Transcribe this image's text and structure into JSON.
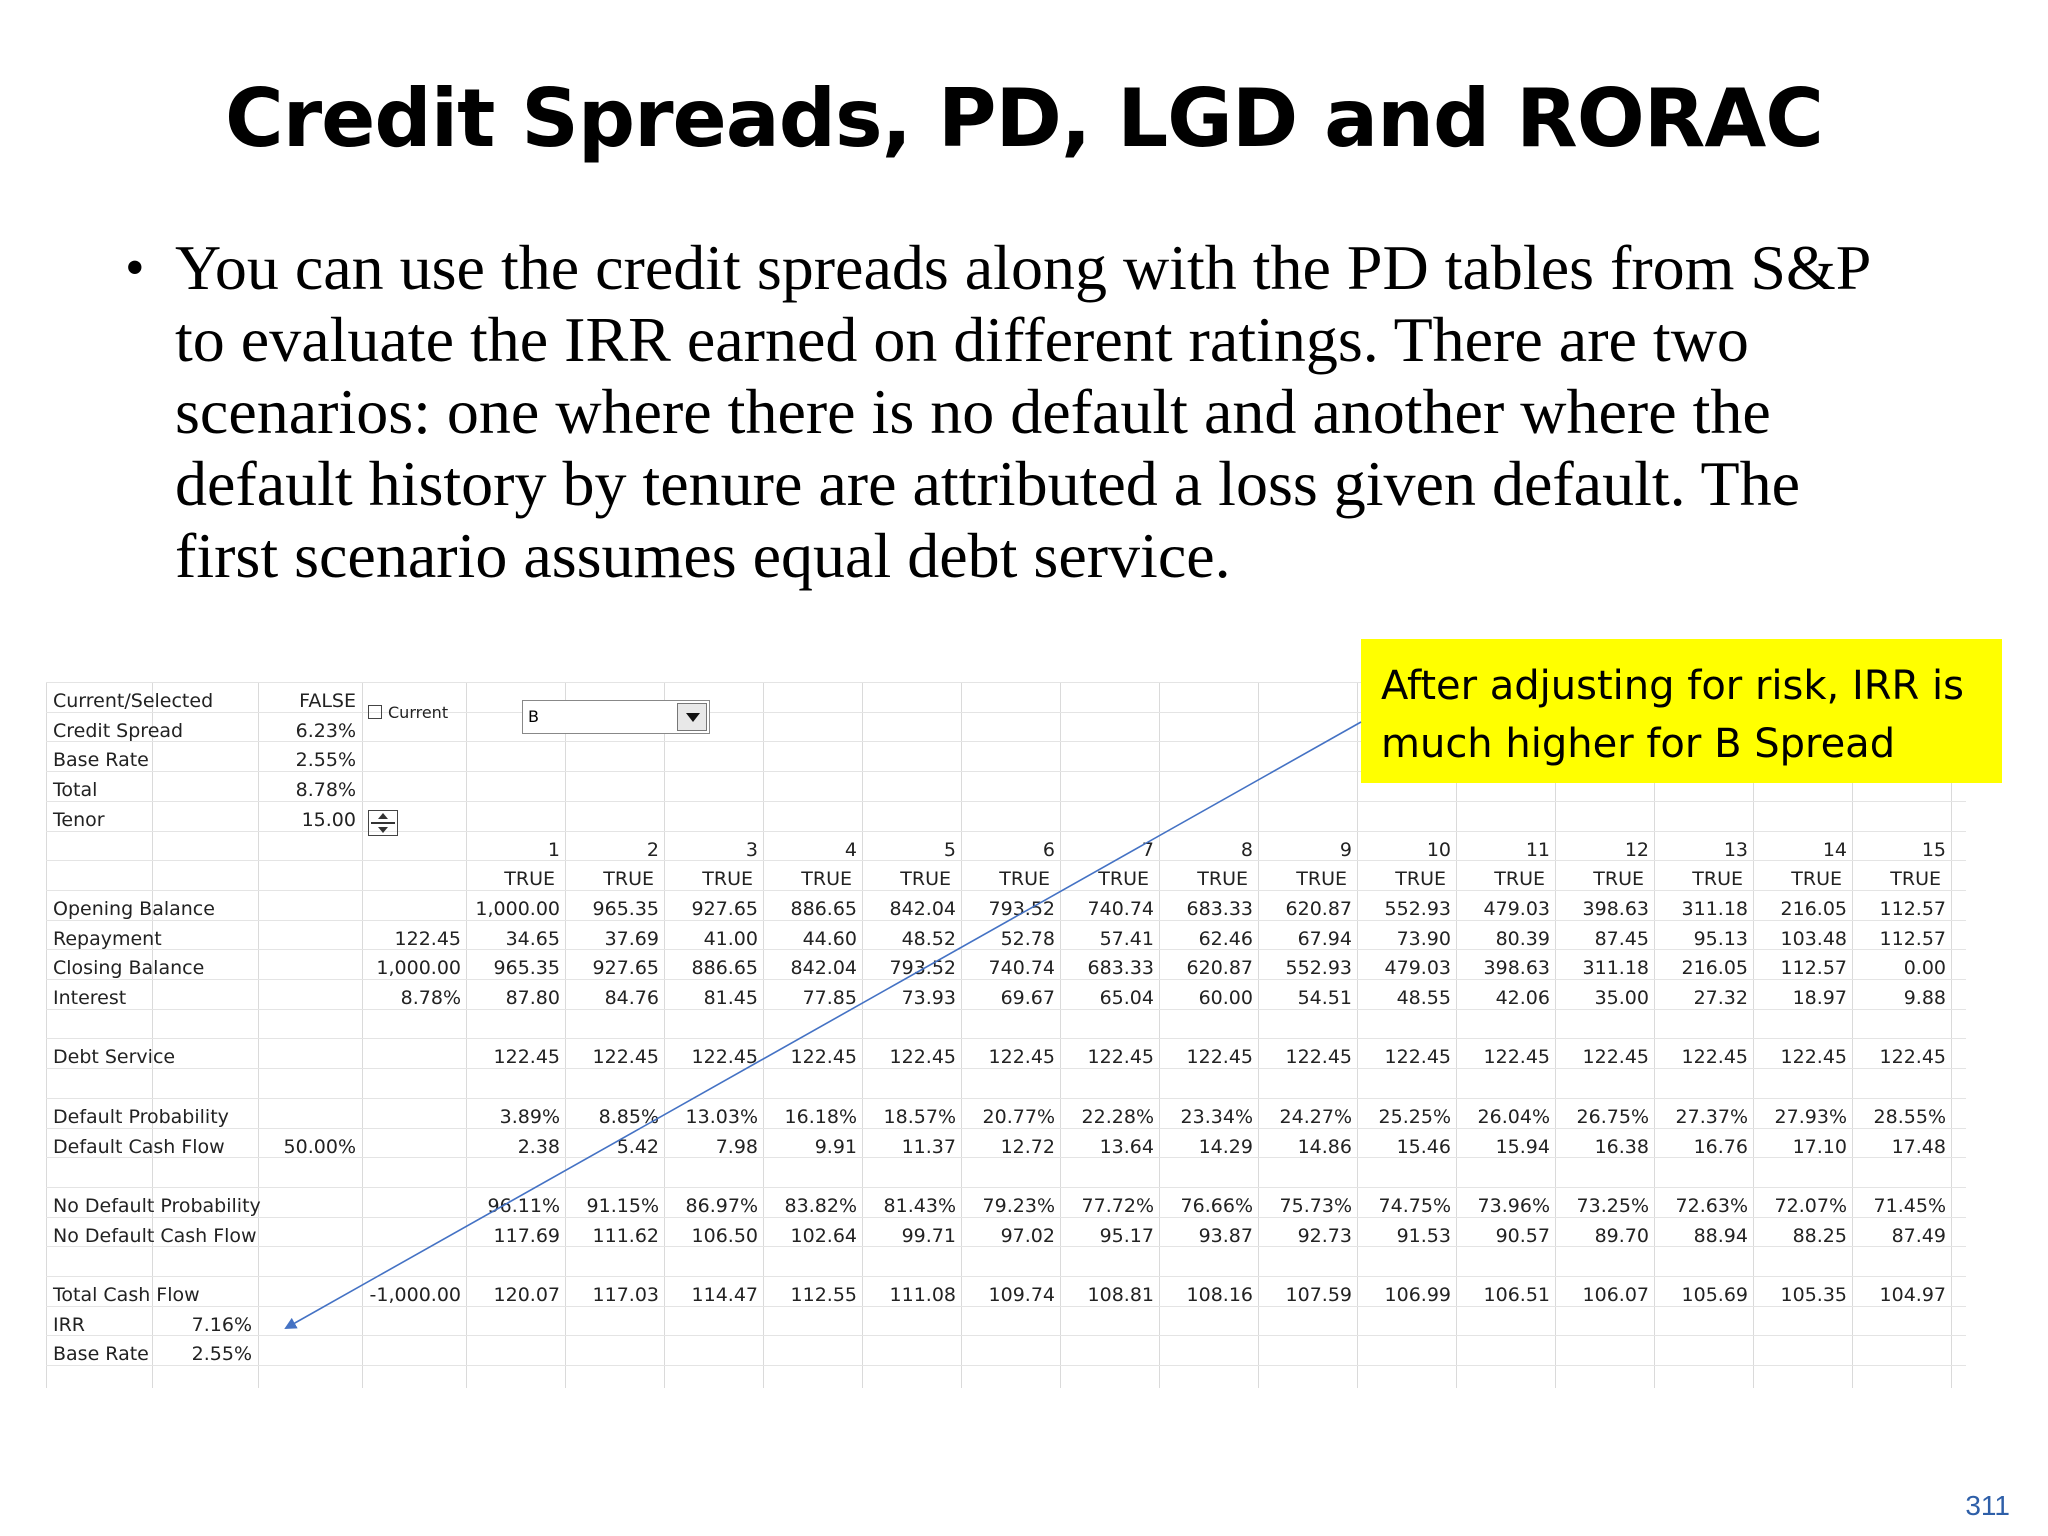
{
  "slide": {
    "title": "Credit Spreads, PD, LGD and RORAC",
    "bullet_symbol": "•",
    "bullet_text": "You can use the credit spreads along with the PD tables from S&P to evaluate the IRR earned on different ratings.  There are two scenarios: one where there is no default and another where the default history by tenure are attributed a loss given default. The first scenario assumes equal debt service.",
    "callout_text": "After adjusting for risk, IRR is much higher for B Spread",
    "page_number": "311",
    "callout_color": "#ffff00",
    "arrow_color": "#4472c4"
  },
  "sheet": {
    "params": [
      {
        "label": "Current/Selected",
        "value": "FALSE"
      },
      {
        "label": "Credit Spread",
        "value": "6.23%"
      },
      {
        "label": "Base Rate",
        "value": "2.55%"
      },
      {
        "label": "Total",
        "value": "8.78%"
      },
      {
        "label": "Tenor",
        "value": "15.00"
      }
    ],
    "checkbox_label": "Current",
    "dropdown_value": "B",
    "periods": [
      "1",
      "2",
      "3",
      "4",
      "5",
      "6",
      "7",
      "8",
      "9",
      "10",
      "11",
      "12",
      "13",
      "14",
      "15"
    ],
    "flags": [
      "TRUE",
      "TRUE",
      "TRUE",
      "TRUE",
      "TRUE",
      "TRUE",
      "TRUE",
      "TRUE",
      "TRUE",
      "TRUE",
      "TRUE",
      "TRUE",
      "TRUE",
      "TRUE",
      "TRUE"
    ],
    "rows": [
      {
        "label": "Opening Balance",
        "c1": "",
        "c2": "",
        "values": [
          "1,000.00",
          "965.35",
          "927.65",
          "886.65",
          "842.04",
          "793.52",
          "740.74",
          "683.33",
          "620.87",
          "552.93",
          "479.03",
          "398.63",
          "311.18",
          "216.05",
          "112.57"
        ]
      },
      {
        "label": "Repayment",
        "c1": "",
        "c2": "122.45",
        "values": [
          "34.65",
          "37.69",
          "41.00",
          "44.60",
          "48.52",
          "52.78",
          "57.41",
          "62.46",
          "67.94",
          "73.90",
          "80.39",
          "87.45",
          "95.13",
          "103.48",
          "112.57"
        ]
      },
      {
        "label": "Closing Balance",
        "c1": "",
        "c2": "1,000.00",
        "values": [
          "965.35",
          "927.65",
          "886.65",
          "842.04",
          "793.52",
          "740.74",
          "683.33",
          "620.87",
          "552.93",
          "479.03",
          "398.63",
          "311.18",
          "216.05",
          "112.57",
          "0.00"
        ]
      },
      {
        "label": "Interest",
        "c1": "",
        "c2": "8.78%",
        "values": [
          "87.80",
          "84.76",
          "81.45",
          "77.85",
          "73.93",
          "69.67",
          "65.04",
          "60.00",
          "54.51",
          "48.55",
          "42.06",
          "35.00",
          "27.32",
          "18.97",
          "9.88"
        ]
      },
      {
        "label": "Debt Service",
        "c1": "",
        "c2": "",
        "values": [
          "122.45",
          "122.45",
          "122.45",
          "122.45",
          "122.45",
          "122.45",
          "122.45",
          "122.45",
          "122.45",
          "122.45",
          "122.45",
          "122.45",
          "122.45",
          "122.45",
          "122.45"
        ]
      },
      {
        "label": "Default Probability",
        "c1": "",
        "c2": "",
        "values": [
          "3.89%",
          "8.85%",
          "13.03%",
          "16.18%",
          "18.57%",
          "20.77%",
          "22.28%",
          "23.34%",
          "24.27%",
          "25.25%",
          "26.04%",
          "26.75%",
          "27.37%",
          "27.93%",
          "28.55%"
        ]
      },
      {
        "label": "Default Cash Flow",
        "c1": "50.00%",
        "c2": "",
        "values": [
          "2.38",
          "5.42",
          "7.98",
          "9.91",
          "11.37",
          "12.72",
          "13.64",
          "14.29",
          "14.86",
          "15.46",
          "15.94",
          "16.38",
          "16.76",
          "17.10",
          "17.48"
        ]
      },
      {
        "label": "No Default Probability",
        "c1": "",
        "c2": "",
        "values": [
          "96.11%",
          "91.15%",
          "86.97%",
          "83.82%",
          "81.43%",
          "79.23%",
          "77.72%",
          "76.66%",
          "75.73%",
          "74.75%",
          "73.96%",
          "73.25%",
          "72.63%",
          "72.07%",
          "71.45%"
        ]
      },
      {
        "label": "No Default Cash Flow",
        "c1": "",
        "c2": "",
        "values": [
          "117.69",
          "111.62",
          "106.50",
          "102.64",
          "99.71",
          "97.02",
          "95.17",
          "93.87",
          "92.73",
          "91.53",
          "90.57",
          "89.70",
          "88.94",
          "88.25",
          "87.49"
        ]
      },
      {
        "label": "Total Cash Flow",
        "c1": "",
        "c2": "-1,000.00",
        "values": [
          "120.07",
          "117.03",
          "114.47",
          "112.55",
          "111.08",
          "109.74",
          "108.81",
          "108.16",
          "107.59",
          "106.99",
          "106.51",
          "106.07",
          "105.69",
          "105.35",
          "104.97"
        ]
      }
    ],
    "irr": {
      "label": "IRR",
      "value": "7.16%"
    },
    "base_rate": {
      "label": "Base Rate",
      "value": "2.55%"
    }
  }
}
